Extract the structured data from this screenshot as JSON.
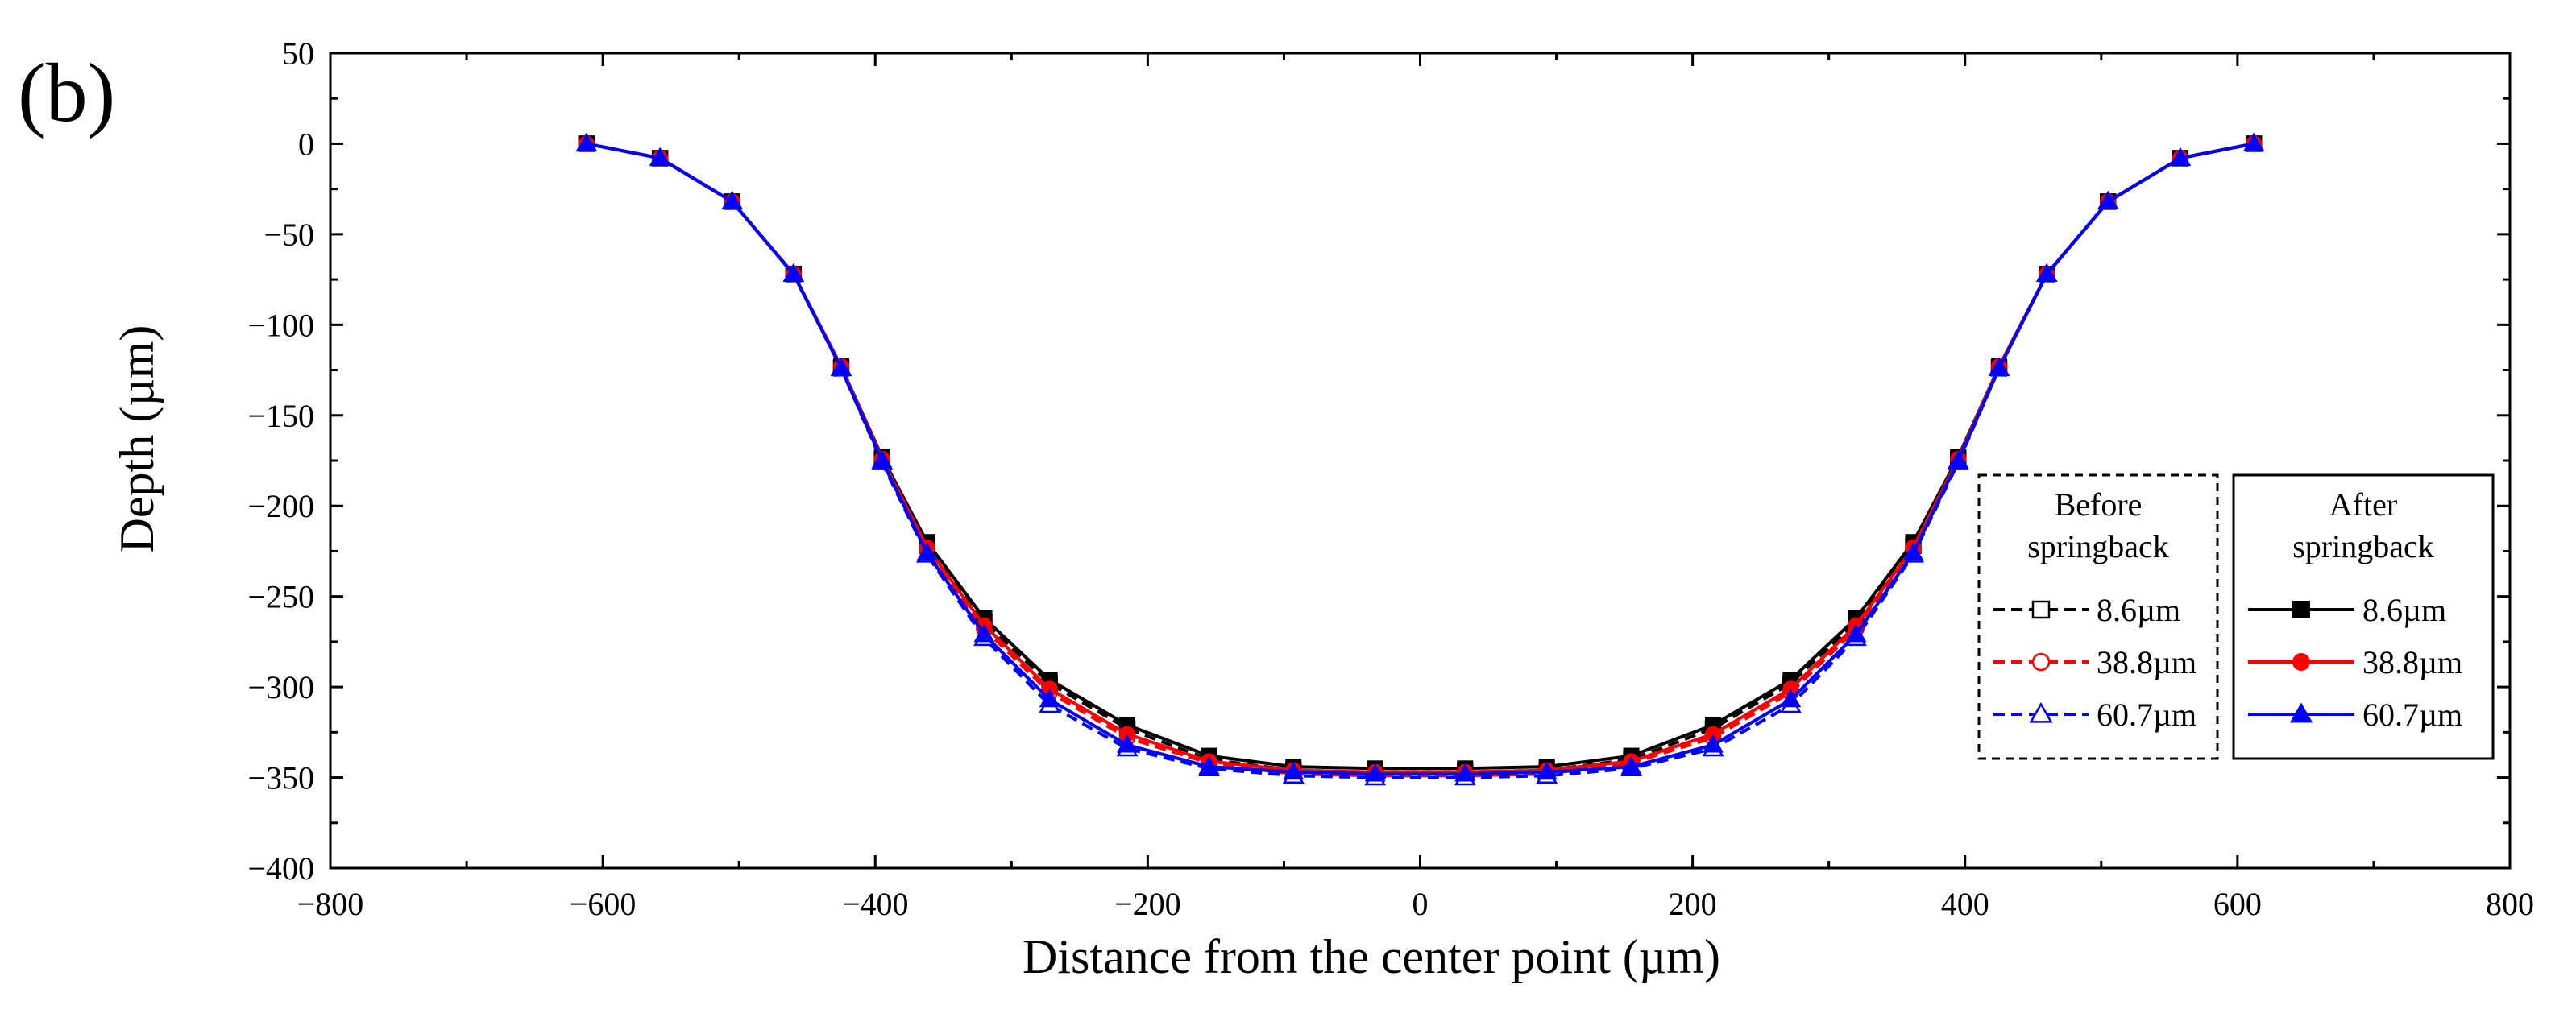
{
  "panel_label": "(b)",
  "chart_data": {
    "type": "line",
    "title": "",
    "xlabel": "Distance from the center point (µm)",
    "ylabel": "Depth (µm)",
    "xlim": [
      -800,
      800
    ],
    "ylim": [
      -400,
      50
    ],
    "xticks": [
      -800,
      -600,
      -400,
      -200,
      0,
      200,
      400,
      600,
      800
    ],
    "yticks": [
      50,
      0,
      -50,
      -100,
      -150,
      -200,
      -250,
      -300,
      -350,
      -400
    ],
    "xtick_labels": [
      "−800",
      "−600",
      "−400",
      "−200",
      "0",
      "200",
      "400",
      "600",
      "800"
    ],
    "ytick_labels": [
      "50",
      "0",
      "−50",
      "−100",
      "−150",
      "−200",
      "−250",
      "−300",
      "−350",
      "−400"
    ],
    "grid": false,
    "x": [
      -612,
      -558,
      -505,
      -460,
      -425,
      -395,
      -362,
      -320,
      -272,
      -215,
      -155,
      -93,
      -33,
      33,
      93,
      155,
      215,
      272,
      320,
      362,
      395,
      425,
      460,
      505,
      558,
      612
    ],
    "series": [
      {
        "name": "8.6µm",
        "group": "Before springback",
        "color": "#000000",
        "dash": true,
        "marker": "square-open",
        "values": [
          0,
          -8,
          -32,
          -72,
          -124,
          -174,
          -222,
          -264,
          -298,
          -323,
          -340,
          -346,
          -347,
          -347,
          -346,
          -340,
          -323,
          -298,
          -264,
          -222,
          -174,
          -124,
          -72,
          -32,
          -8,
          0
        ]
      },
      {
        "name": "38.8µm",
        "group": "Before springback",
        "color": "#ff0000",
        "dash": true,
        "marker": "circle-open",
        "values": [
          0,
          -8,
          -32,
          -72,
          -124,
          -175,
          -224,
          -268,
          -303,
          -328,
          -342,
          -348,
          -349,
          -349,
          -348,
          -342,
          -328,
          -303,
          -268,
          -224,
          -175,
          -124,
          -72,
          -32,
          -8,
          0
        ]
      },
      {
        "name": "60.7µm",
        "group": "Before springback",
        "color": "#0000ff",
        "dash": true,
        "marker": "triangle-open",
        "values": [
          0,
          -8,
          -32,
          -72,
          -124,
          -176,
          -227,
          -273,
          -310,
          -334,
          -345,
          -349,
          -350,
          -350,
          -349,
          -345,
          -334,
          -310,
          -273,
          -227,
          -176,
          -124,
          -72,
          -32,
          -8,
          0
        ]
      },
      {
        "name": "8.6µm",
        "group": "After springback",
        "color": "#000000",
        "dash": false,
        "marker": "square-filled",
        "values": [
          0,
          -8,
          -32,
          -72,
          -123,
          -173,
          -220,
          -262,
          -296,
          -321,
          -338,
          -344,
          -345,
          -345,
          -344,
          -338,
          -321,
          -296,
          -262,
          -220,
          -173,
          -123,
          -72,
          -32,
          -8,
          0
        ]
      },
      {
        "name": "38.8µm",
        "group": "After springback",
        "color": "#ff0000",
        "dash": false,
        "marker": "circle-filled",
        "values": [
          0,
          -8,
          -32,
          -72,
          -123,
          -174,
          -223,
          -266,
          -301,
          -326,
          -341,
          -346,
          -347,
          -347,
          -346,
          -341,
          -326,
          -301,
          -266,
          -223,
          -174,
          -123,
          -72,
          -32,
          -8,
          0
        ]
      },
      {
        "name": "60.7µm",
        "group": "After springback",
        "color": "#0000ff",
        "dash": false,
        "marker": "triangle-filled",
        "values": [
          0,
          -8,
          -32,
          -72,
          -124,
          -175,
          -226,
          -271,
          -307,
          -332,
          -344,
          -347,
          -348,
          -348,
          -347,
          -344,
          -332,
          -307,
          -271,
          -226,
          -175,
          -124,
          -72,
          -32,
          -8,
          0
        ]
      }
    ],
    "legend": {
      "before": {
        "title_line1": "Before",
        "title_line2": "springback",
        "entries": [
          "8.6µm",
          "38.8µm",
          "60.7µm"
        ],
        "border": "dashed",
        "placement": "lower-right-inner"
      },
      "after": {
        "title_line1": "After",
        "title_line2": "springback",
        "entries": [
          "8.6µm",
          "38.8µm",
          "60.7µm"
        ],
        "border": "solid",
        "placement": "lower-right"
      }
    }
  }
}
